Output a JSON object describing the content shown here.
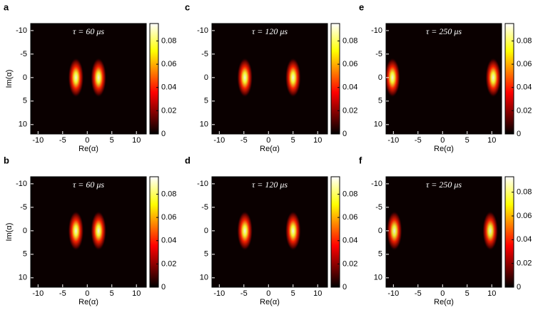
{
  "chart_data": [
    {
      "type": "heatmap",
      "panel_label": "a",
      "annotation": "τ = 60 μs",
      "xlabel": "Re(α)",
      "ylabel": "Im(α)",
      "xlim": [
        -11.5,
        12
      ],
      "ylim": [
        -11.5,
        12
      ],
      "y_inverted": true,
      "xticks": [
        -10,
        -5,
        0,
        5,
        10
      ],
      "yticks": [
        -10,
        -5,
        0,
        5,
        10
      ],
      "clim": [
        0,
        0.095
      ],
      "cticks": [
        0,
        0.02,
        0.04,
        0.06,
        0.08
      ],
      "peaks": [
        {
          "x": -2.3,
          "y": 0,
          "value": 0.09
        },
        {
          "x": 2.3,
          "y": 0,
          "value": 0.09
        }
      ]
    },
    {
      "type": "heatmap",
      "panel_label": "b",
      "annotation": "τ = 60 μs",
      "xlabel": "Re(α)",
      "ylabel": "Im(α)",
      "xlim": [
        -11.5,
        12
      ],
      "ylim": [
        -11.5,
        12
      ],
      "y_inverted": true,
      "xticks": [
        -10,
        -5,
        0,
        5,
        10
      ],
      "yticks": [
        -10,
        -5,
        0,
        5,
        10
      ],
      "clim": [
        0,
        0.095
      ],
      "cticks": [
        0,
        0.02,
        0.04,
        0.06,
        0.08
      ],
      "peaks": [
        {
          "x": -2.3,
          "y": 0,
          "value": 0.09
        },
        {
          "x": 2.3,
          "y": 0,
          "value": 0.09
        }
      ]
    },
    {
      "type": "heatmap",
      "panel_label": "c",
      "annotation": "τ = 120 μs",
      "xlabel": "Re(α)",
      "xlim": [
        -11.5,
        12
      ],
      "ylim": [
        -11.5,
        12
      ],
      "y_inverted": true,
      "xticks": [
        -10,
        -5,
        0,
        5,
        10
      ],
      "yticks": [
        -10,
        -5,
        0,
        5,
        10
      ],
      "clim": [
        0,
        0.095
      ],
      "cticks": [
        0,
        0.02,
        0.04,
        0.06,
        0.08
      ],
      "peaks": [
        {
          "x": -4.8,
          "y": 0,
          "value": 0.09
        },
        {
          "x": 5,
          "y": 0,
          "value": 0.09
        }
      ]
    },
    {
      "type": "heatmap",
      "panel_label": "d",
      "annotation": "τ = 120 μs",
      "xlabel": "Re(α)",
      "xlim": [
        -11.5,
        12
      ],
      "ylim": [
        -11.5,
        12
      ],
      "y_inverted": true,
      "xticks": [
        -10,
        -5,
        0,
        5,
        10
      ],
      "yticks": [
        -10,
        -5,
        0,
        5,
        10
      ],
      "clim": [
        0,
        0.095
      ],
      "cticks": [
        0,
        0.02,
        0.04,
        0.06,
        0.08
      ],
      "peaks": [
        {
          "x": -4.8,
          "y": 0,
          "value": 0.09
        },
        {
          "x": 5,
          "y": 0,
          "value": 0.09
        }
      ]
    },
    {
      "type": "heatmap",
      "panel_label": "e",
      "annotation": "τ = 250 μs",
      "xlabel": "Re(α)",
      "xlim": [
        -11.5,
        12
      ],
      "ylim": [
        -11.5,
        12
      ],
      "y_inverted": true,
      "xticks": [
        -10,
        -5,
        0,
        5,
        10
      ],
      "yticks": [
        -10,
        -5,
        0,
        5,
        10
      ],
      "clim": [
        0,
        0.095
      ],
      "cticks": [
        0,
        0.02,
        0.04,
        0.06,
        0.08
      ],
      "peaks": [
        {
          "x": -10.2,
          "y": 0,
          "value": 0.09
        },
        {
          "x": 10.3,
          "y": 0,
          "value": 0.09
        }
      ]
    },
    {
      "type": "heatmap",
      "panel_label": "f",
      "annotation": "τ = 250 μs",
      "xlabel": "Re(α)",
      "xlim": [
        -11.5,
        12
      ],
      "ylim": [
        -11.5,
        12
      ],
      "y_inverted": true,
      "xticks": [
        -10,
        -5,
        0,
        5,
        10
      ],
      "yticks": [
        -10,
        -5,
        0,
        5,
        10
      ],
      "clim": [
        0,
        0.093
      ],
      "cticks": [
        0,
        0.02,
        0.04,
        0.06,
        0.08
      ],
      "peaks": [
        {
          "x": -9.8,
          "y": 0,
          "value": 0.085
        },
        {
          "x": 9.7,
          "y": 0,
          "value": 0.085
        }
      ]
    }
  ]
}
